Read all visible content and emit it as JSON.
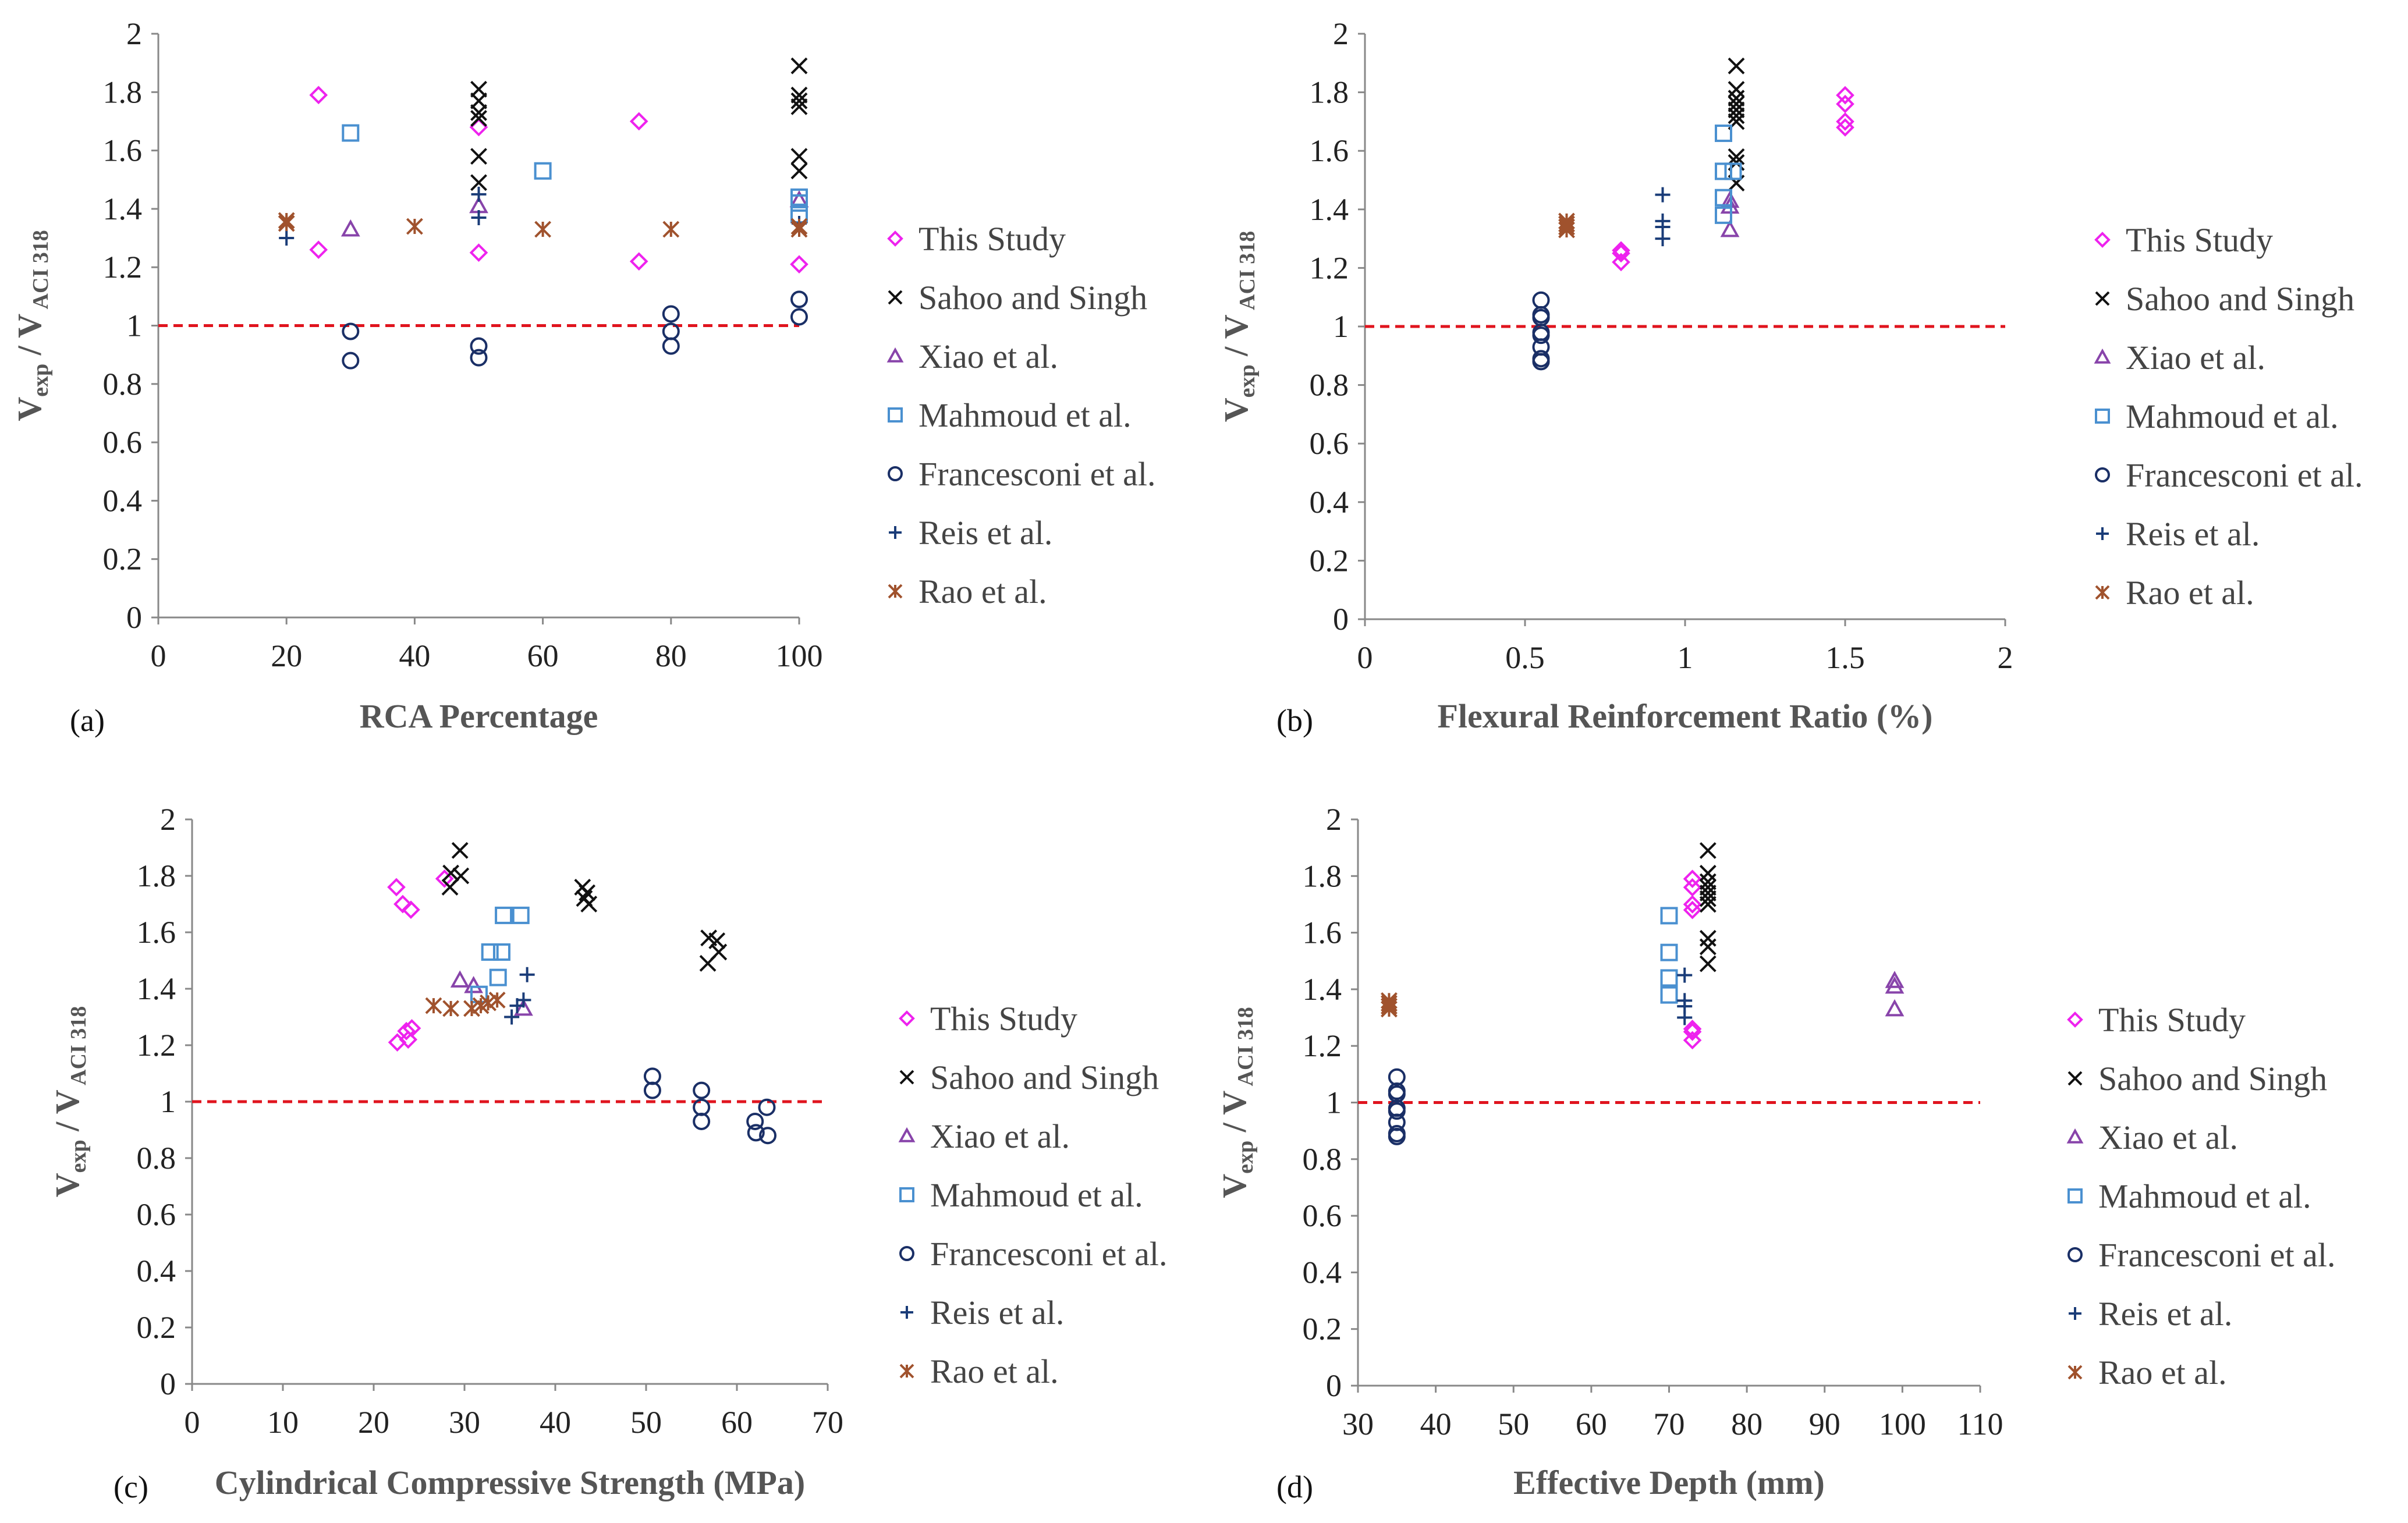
{
  "legend": [
    "This Study",
    "Sahoo and Singh",
    "Xiao et al.",
    "Mahmoud et al.",
    "Francesconi et al.",
    "Reis et al.",
    "Rao et al."
  ],
  "colors": {
    "This Study": "#ee22ee",
    "Sahoo and Singh": "#111111",
    "Xiao et al.": "#8844aa",
    "Mahmoud et al.": "#4a90d0",
    "Francesconi et al.": "#1a2f66",
    "Reis et al.": "#1a3c78",
    "Rao et al.": "#a0522d",
    "reference": "#e0141e"
  },
  "ylabel": {
    "main": "V",
    "sub1": "exp",
    "mid": " / V",
    "sub2": " ACI 318"
  },
  "chart_data": [
    {
      "type": "scatter",
      "panel": "(a)",
      "xlabel": "RCA Percentage",
      "xlim": [
        0,
        100
      ],
      "xticks": [
        0,
        20,
        40,
        60,
        80,
        100
      ],
      "ylim": [
        0,
        2
      ],
      "yticks": [
        0,
        0.2,
        0.4,
        0.6,
        0.8,
        1,
        1.2,
        1.4,
        1.6,
        1.8,
        2
      ],
      "reference_line": 1,
      "series": [
        {
          "name": "This Study",
          "points": [
            [
              25,
              1.79
            ],
            [
              25,
              1.26
            ],
            [
              50,
              1.68
            ],
            [
              50,
              1.25
            ],
            [
              75,
              1.7
            ],
            [
              75,
              1.22
            ],
            [
              100,
              1.21
            ]
          ]
        },
        {
          "name": "Sahoo and Singh",
          "points": [
            [
              50,
              1.81
            ],
            [
              50,
              1.77
            ],
            [
              50,
              1.73
            ],
            [
              50,
              1.71
            ],
            [
              50,
              1.58
            ],
            [
              50,
              1.49
            ],
            [
              100,
              1.89
            ],
            [
              100,
              1.79
            ],
            [
              100,
              1.77
            ],
            [
              100,
              1.75
            ],
            [
              100,
              1.58
            ],
            [
              100,
              1.53
            ]
          ]
        },
        {
          "name": "Xiao et al.",
          "points": [
            [
              30,
              1.33
            ],
            [
              50,
              1.41
            ],
            [
              100,
              1.43
            ]
          ]
        },
        {
          "name": "Mahmoud et al.",
          "points": [
            [
              30,
              1.66
            ],
            [
              60,
              1.53
            ],
            [
              100,
              1.44
            ],
            [
              100,
              1.42
            ],
            [
              100,
              1.38
            ]
          ]
        },
        {
          "name": "Francesconi et al.",
          "points": [
            [
              30,
              0.98
            ],
            [
              30,
              0.88
            ],
            [
              50,
              0.93
            ],
            [
              50,
              0.89
            ],
            [
              80,
              1.04
            ],
            [
              80,
              0.98
            ],
            [
              80,
              0.93
            ],
            [
              100,
              1.09
            ],
            [
              100,
              1.03
            ]
          ]
        },
        {
          "name": "Reis et al.",
          "points": [
            [
              20,
              1.3
            ],
            [
              50,
              1.45
            ],
            [
              50,
              1.37
            ],
            [
              100,
              1.35
            ]
          ]
        },
        {
          "name": "Rao et al.",
          "points": [
            [
              20,
              1.36
            ],
            [
              20,
              1.35
            ],
            [
              40,
              1.34
            ],
            [
              60,
              1.33
            ],
            [
              80,
              1.33
            ],
            [
              100,
              1.34
            ],
            [
              100,
              1.33
            ]
          ]
        }
      ]
    },
    {
      "type": "scatter",
      "panel": "(b)",
      "xlabel": "Flexural Reinforcement Ratio (%)",
      "xlim": [
        0,
        2
      ],
      "xticks": [
        0,
        0.5,
        1,
        1.5,
        2
      ],
      "ylim": [
        0,
        2
      ],
      "yticks": [
        0,
        0.2,
        0.4,
        0.6,
        0.8,
        1,
        1.2,
        1.4,
        1.6,
        1.8,
        2
      ],
      "reference_line": 1,
      "series": [
        {
          "name": "This Study",
          "points": [
            [
              0.8,
              1.26
            ],
            [
              0.8,
              1.25
            ],
            [
              0.8,
              1.22
            ],
            [
              1.5,
              1.79
            ],
            [
              1.5,
              1.76
            ],
            [
              1.5,
              1.7
            ],
            [
              1.5,
              1.68
            ]
          ]
        },
        {
          "name": "Sahoo and Singh",
          "points": [
            [
              1.16,
              1.89
            ],
            [
              1.16,
              1.81
            ],
            [
              1.16,
              1.78
            ],
            [
              1.16,
              1.76
            ],
            [
              1.16,
              1.74
            ],
            [
              1.16,
              1.72
            ],
            [
              1.16,
              1.7
            ],
            [
              1.16,
              1.58
            ],
            [
              1.16,
              1.56
            ],
            [
              1.16,
              1.49
            ]
          ]
        },
        {
          "name": "Xiao et al.",
          "points": [
            [
              1.14,
              1.43
            ],
            [
              1.14,
              1.41
            ],
            [
              1.14,
              1.33
            ]
          ]
        },
        {
          "name": "Mahmoud et al.",
          "points": [
            [
              1.12,
              1.66
            ],
            [
              1.12,
              1.53
            ],
            [
              1.12,
              1.44
            ],
            [
              1.12,
              1.38
            ],
            [
              1.15,
              1.53
            ]
          ]
        },
        {
          "name": "Francesconi et al.",
          "points": [
            [
              0.55,
              1.09
            ],
            [
              0.55,
              1.04
            ],
            [
              0.55,
              1.03
            ],
            [
              0.55,
              0.98
            ],
            [
              0.55,
              0.97
            ],
            [
              0.55,
              0.93
            ],
            [
              0.55,
              0.89
            ],
            [
              0.55,
              0.88
            ]
          ]
        },
        {
          "name": "Reis et al.",
          "points": [
            [
              0.93,
              1.45
            ],
            [
              0.93,
              1.36
            ],
            [
              0.93,
              1.34
            ],
            [
              0.93,
              1.3
            ]
          ]
        },
        {
          "name": "Rao et al.",
          "points": [
            [
              0.63,
              1.36
            ],
            [
              0.63,
              1.35
            ],
            [
              0.63,
              1.34
            ],
            [
              0.63,
              1.33
            ]
          ]
        }
      ]
    },
    {
      "type": "scatter",
      "panel": "(c)",
      "xlabel": "Cylindrical Compressive Strength (MPa)",
      "xlim": [
        0,
        70
      ],
      "xticks": [
        0,
        10,
        20,
        30,
        40,
        50,
        60,
        70
      ],
      "ylim": [
        0,
        2
      ],
      "yticks": [
        0,
        0.2,
        0.4,
        0.6,
        0.8,
        1,
        1.2,
        1.4,
        1.6,
        1.8,
        2
      ],
      "reference_line": 1,
      "series": [
        {
          "name": "This Study",
          "points": [
            [
              22.5,
              1.76
            ],
            [
              23.2,
              1.7
            ],
            [
              24.1,
              1.68
            ],
            [
              22.6,
              1.21
            ],
            [
              23.6,
              1.25
            ],
            [
              24.2,
              1.26
            ],
            [
              23.8,
              1.22
            ],
            [
              27.8,
              1.79
            ]
          ]
        },
        {
          "name": "Sahoo and Singh",
          "points": [
            [
              29.5,
              1.89
            ],
            [
              28.5,
              1.81
            ],
            [
              29.6,
              1.8
            ],
            [
              28.4,
              1.76
            ],
            [
              43.0,
              1.76
            ],
            [
              43.5,
              1.74
            ],
            [
              43.2,
              1.72
            ],
            [
              43.7,
              1.7
            ],
            [
              56.9,
              1.58
            ],
            [
              57.8,
              1.57
            ],
            [
              58.0,
              1.53
            ],
            [
              56.8,
              1.49
            ]
          ]
        },
        {
          "name": "Xiao et al.",
          "points": [
            [
              29.5,
              1.43
            ],
            [
              31.0,
              1.41
            ],
            [
              36.5,
              1.33
            ]
          ]
        },
        {
          "name": "Mahmoud et al.",
          "points": [
            [
              34.3,
              1.66
            ],
            [
              36.2,
              1.66
            ],
            [
              32.8,
              1.53
            ],
            [
              34.1,
              1.53
            ],
            [
              33.7,
              1.44
            ],
            [
              31.6,
              1.38
            ]
          ]
        },
        {
          "name": "Francesconi et al.",
          "points": [
            [
              50.7,
              1.09
            ],
            [
              50.7,
              1.04
            ],
            [
              56.1,
              1.04
            ],
            [
              56.1,
              0.98
            ],
            [
              56.1,
              0.93
            ],
            [
              62.0,
              0.93
            ],
            [
              62.1,
              0.89
            ],
            [
              63.3,
              0.98
            ],
            [
              63.4,
              0.88
            ]
          ]
        },
        {
          "name": "Reis et al.",
          "points": [
            [
              36.9,
              1.45
            ],
            [
              36.5,
              1.36
            ],
            [
              35.8,
              1.34
            ],
            [
              35.2,
              1.3
            ]
          ]
        },
        {
          "name": "Rao et al.",
          "points": [
            [
              26.6,
              1.34
            ],
            [
              28.5,
              1.33
            ],
            [
              30.8,
              1.33
            ],
            [
              31.8,
              1.34
            ],
            [
              32.6,
              1.35
            ],
            [
              33.6,
              1.36
            ]
          ]
        }
      ]
    },
    {
      "type": "scatter",
      "panel": "(d)",
      "xlabel": "Effective Depth (mm)",
      "xlim": [
        30,
        110
      ],
      "xticks": [
        30,
        40,
        50,
        60,
        70,
        80,
        90,
        100,
        110
      ],
      "ylim": [
        0,
        2
      ],
      "yticks": [
        0,
        0.2,
        0.4,
        0.6,
        0.8,
        1,
        1.2,
        1.4,
        1.6,
        1.8,
        2
      ],
      "reference_line": 1,
      "series": [
        {
          "name": "This Study",
          "points": [
            [
              73,
              1.79
            ],
            [
              73,
              1.76
            ],
            [
              73,
              1.7
            ],
            [
              73,
              1.68
            ],
            [
              73,
              1.26
            ],
            [
              73,
              1.25
            ],
            [
              73,
              1.22
            ]
          ]
        },
        {
          "name": "Sahoo and Singh",
          "points": [
            [
              75,
              1.89
            ],
            [
              75,
              1.81
            ],
            [
              75,
              1.78
            ],
            [
              75,
              1.76
            ],
            [
              75,
              1.74
            ],
            [
              75,
              1.72
            ],
            [
              75,
              1.7
            ],
            [
              75,
              1.58
            ],
            [
              75,
              1.55
            ],
            [
              75,
              1.49
            ]
          ]
        },
        {
          "name": "Xiao et al.",
          "points": [
            [
              99,
              1.43
            ],
            [
              99,
              1.41
            ],
            [
              99,
              1.33
            ]
          ]
        },
        {
          "name": "Mahmoud et al.",
          "points": [
            [
              70,
              1.66
            ],
            [
              70,
              1.53
            ],
            [
              70,
              1.44
            ],
            [
              70,
              1.38
            ]
          ]
        },
        {
          "name": "Francesconi et al.",
          "points": [
            [
              35,
              1.09
            ],
            [
              35,
              1.04
            ],
            [
              35,
              1.03
            ],
            [
              35,
              0.98
            ],
            [
              35,
              0.97
            ],
            [
              35,
              0.93
            ],
            [
              35,
              0.89
            ],
            [
              35,
              0.88
            ]
          ]
        },
        {
          "name": "Reis et al.",
          "points": [
            [
              72,
              1.45
            ],
            [
              72,
              1.36
            ],
            [
              72,
              1.34
            ],
            [
              72,
              1.3
            ]
          ]
        },
        {
          "name": "Rao et al.",
          "points": [
            [
              34,
              1.36
            ],
            [
              34,
              1.35
            ],
            [
              34,
              1.34
            ],
            [
              34,
              1.33
            ]
          ]
        }
      ]
    }
  ]
}
